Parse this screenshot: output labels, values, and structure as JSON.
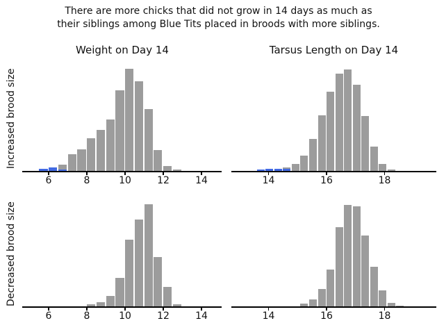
{
  "figure": {
    "title": "There are more chicks that did not grow in 14 days as much as\ntheir siblings among Blue Tits placed in broods with more siblings.",
    "background_color": "#ffffff",
    "text_color": "#111111",
    "axis_color": "#000000"
  },
  "colors": {
    "bar_gray": "#9c9c9c",
    "bar_blue": "#4169e1"
  },
  "columns": [
    {
      "title": "Weight on Day 14"
    },
    {
      "title": "Tarsus Length on Day 14"
    }
  ],
  "rows": [
    {
      "ylabel": "Increased brood size"
    },
    {
      "ylabel": "Decreased brood size"
    }
  ],
  "chart_data": [
    {
      "type": "bar",
      "subtype": "histogram",
      "position": "top-left",
      "title": "Weight on Day 14",
      "ylabel": "Increased brood size",
      "xlabel": "",
      "grid": false,
      "legend": "none",
      "y_axis_ticks": "none (relative frequency heights in px-equivalent units)",
      "xlim": [
        4.654,
        15.055
      ],
      "x_ticks": [
        6,
        8,
        10,
        12,
        14
      ],
      "bin_width": 0.5,
      "ymax": 155,
      "series": [
        {
          "name": "all-chicks-gray",
          "color": "#9c9c9c",
          "bin_start": 6.5,
          "values": [
            9,
            24,
            31,
            47,
            59,
            74,
            116,
            147,
            129,
            89,
            30,
            7,
            2
          ]
        },
        {
          "name": "low-growth-highlight-blue",
          "color": "#4169e1",
          "bin_start": 5.5,
          "values": [
            3,
            5,
            2
          ]
        }
      ]
    },
    {
      "type": "bar",
      "subtype": "histogram",
      "position": "top-right",
      "title": "Tarsus Length on Day 14",
      "ylabel": "Increased brood size",
      "xlabel": "",
      "grid": false,
      "legend": "none",
      "y_axis_ticks": "none (relative frequency heights in px-equivalent units)",
      "xlim": [
        12.719,
        19.785
      ],
      "x_ticks": [
        14,
        16,
        18
      ],
      "bin_width": 0.3,
      "ymax": 155,
      "series": [
        {
          "name": "all-chicks-gray",
          "color": "#9c9c9c",
          "bin_start": 14.5,
          "values": [
            5,
            10,
            22,
            46,
            80,
            114,
            140,
            146,
            124,
            79,
            35,
            10,
            2
          ]
        },
        {
          "name": "low-growth-highlight-blue",
          "color": "#4169e1",
          "bin_start": 13.6,
          "values": [
            2,
            3,
            3,
            3
          ]
        }
      ]
    },
    {
      "type": "bar",
      "subtype": "histogram",
      "position": "bottom-left",
      "title": "Weight on Day 14",
      "ylabel": "Decreased brood size",
      "xlabel": "",
      "grid": false,
      "legend": "none",
      "y_axis_ticks": "none (relative frequency heights in px-equivalent units)",
      "xlim": [
        4.654,
        15.055
      ],
      "x_ticks": [
        6,
        8,
        10,
        12,
        14
      ],
      "bin_width": 0.5,
      "ymax": 155,
      "series": [
        {
          "name": "all-chicks-gray",
          "color": "#9c9c9c",
          "bin_start": 8.0,
          "values": [
            3,
            6,
            15,
            41,
            96,
            125,
            147,
            71,
            28,
            3
          ]
        }
      ]
    },
    {
      "type": "bar",
      "subtype": "histogram",
      "position": "bottom-right",
      "title": "Tarsus Length on Day 14",
      "ylabel": "Decreased brood size",
      "xlabel": "",
      "grid": false,
      "legend": "none",
      "y_axis_ticks": "none (relative frequency heights in px-equivalent units)",
      "xlim": [
        12.719,
        19.785
      ],
      "x_ticks": [
        14,
        16,
        18
      ],
      "bin_width": 0.3,
      "ymax": 155,
      "series": [
        {
          "name": "all-chicks-gray",
          "color": "#9c9c9c",
          "bin_start": 15.1,
          "values": [
            4,
            10,
            25,
            53,
            114,
            146,
            144,
            102,
            57,
            23,
            5,
            1
          ]
        }
      ]
    }
  ]
}
